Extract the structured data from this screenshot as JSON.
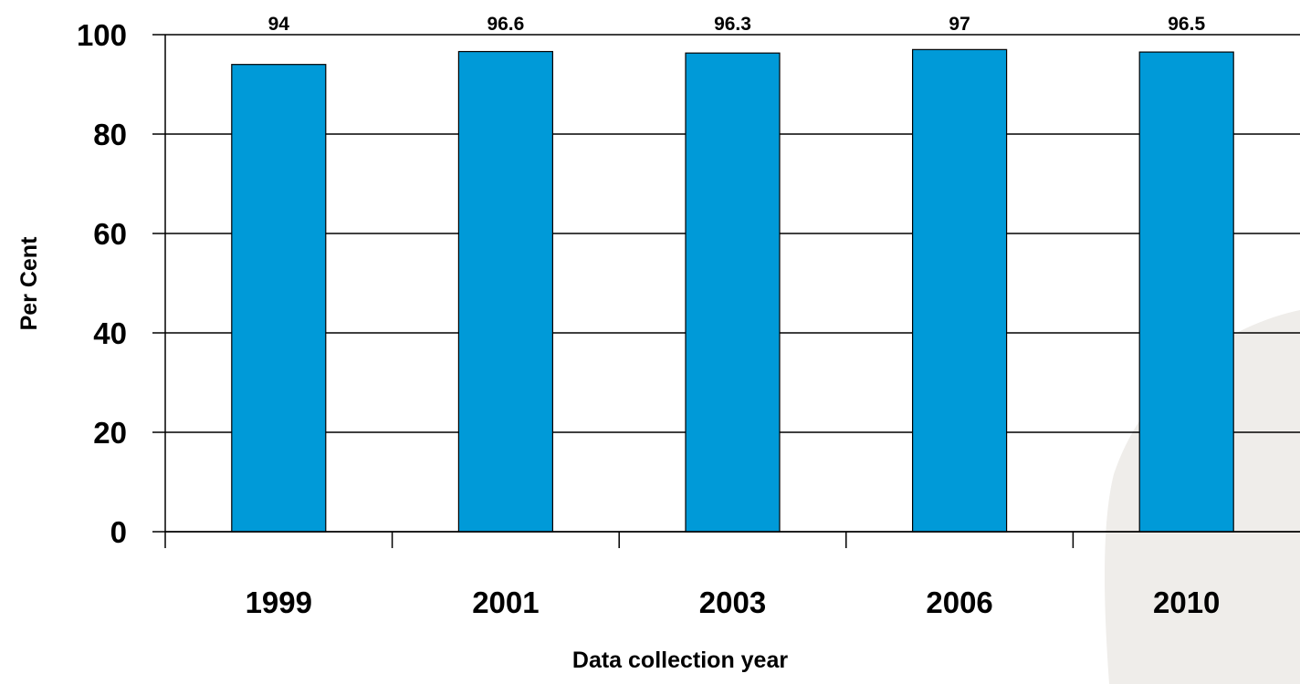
{
  "chart_data": {
    "type": "bar",
    "categories": [
      "1999",
      "2001",
      "2003",
      "2006",
      "2010"
    ],
    "values": [
      94,
      96.6,
      96.3,
      97,
      96.5
    ],
    "data_labels": [
      "94",
      "96.6",
      "96.3",
      "97",
      "96.5"
    ],
    "xlabel": "Data collection year",
    "ylabel": "Per Cent",
    "ylim": [
      0,
      100
    ],
    "yticks": [
      "0",
      "20",
      "40",
      "60",
      "80",
      "100"
    ],
    "grid": true,
    "bar_color": "#009ad8",
    "background_shape_color": "#efedea"
  }
}
